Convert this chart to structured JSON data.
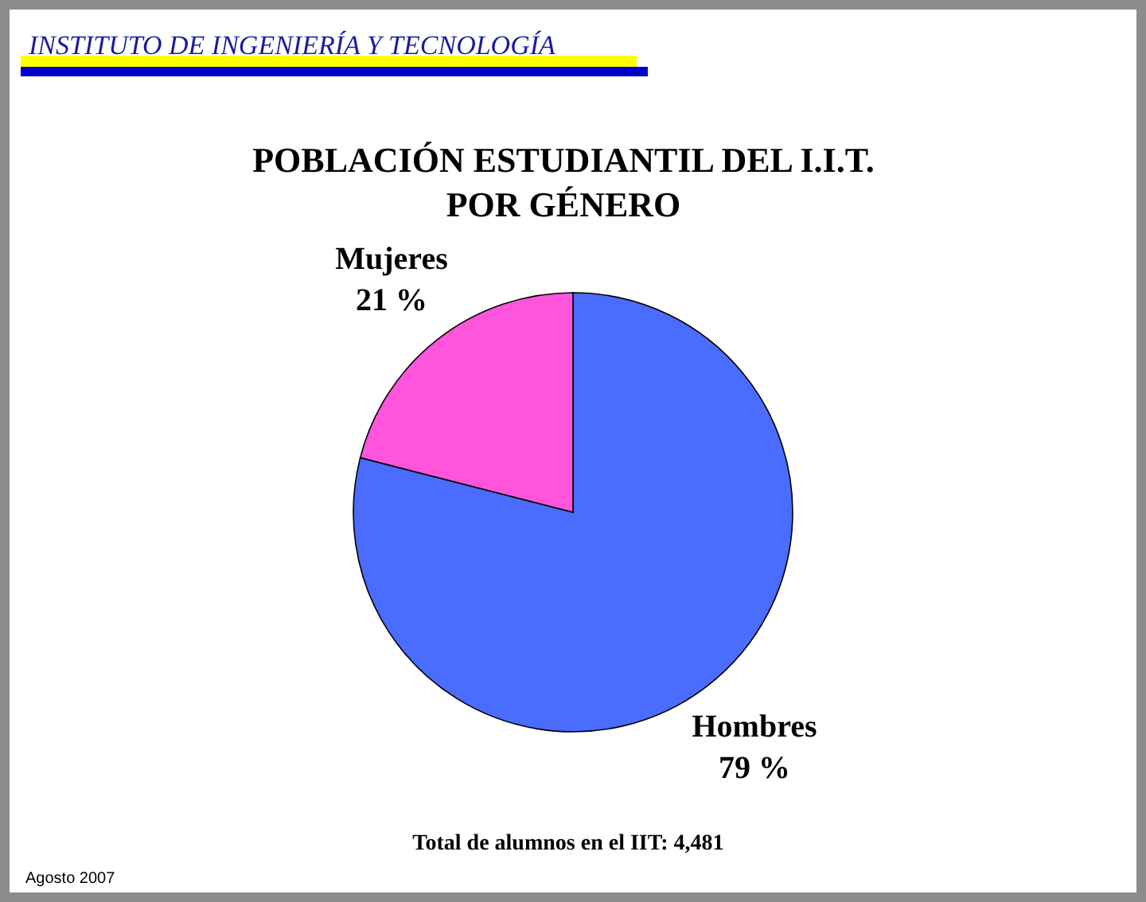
{
  "chart_data": {
    "type": "pie",
    "title": "POBLACIÓN ESTUDIANTIL DEL I.I.T.\nPOR GÉNERO",
    "categories": [
      "Hombres",
      "Mujeres"
    ],
    "values": [
      79,
      21
    ],
    "colors": [
      "#4a6cff",
      "#ff55dd"
    ],
    "value_labels": [
      "79 %",
      "21 %"
    ],
    "annotations": [
      "INSTITUTO DE INGENIERÍA Y TECNOLOGÍA",
      "Total de alumnos en el IIT: 4,481",
      "Agosto 2007"
    ]
  }
}
